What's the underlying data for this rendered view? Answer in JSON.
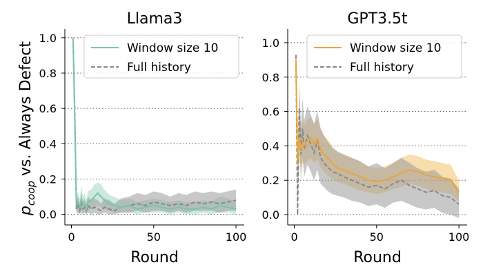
{
  "chart_data": [
    {
      "type": "line",
      "title": "Llama3",
      "xlabel": "Round",
      "ylabel_main": "p",
      "ylabel_sub": "coop",
      "ylabel_rest": " vs. Always Defect",
      "xlim": [
        -4,
        105
      ],
      "ylim": [
        -0.06,
        1.05
      ],
      "xticks": [
        "0",
        "50",
        "100"
      ],
      "xtick_values": [
        0,
        50,
        100
      ],
      "yticks": [
        "0.0",
        "0.2",
        "0.4",
        "0.6",
        "0.8",
        "1.0"
      ],
      "ytick_values": [
        0,
        0.2,
        0.4,
        0.6,
        0.8,
        1.0
      ],
      "grid": "horizontal dotted",
      "legend_position": "top-right",
      "series": [
        {
          "name": "Window size 10",
          "style": "solid",
          "color": "#7cc4a6",
          "band_color": "#8fcfb5",
          "x": [
            1,
            2,
            3,
            4,
            5,
            6,
            7,
            8,
            9,
            10,
            12,
            14,
            16,
            18,
            20,
            23,
            26,
            30,
            35,
            40,
            45,
            50,
            55,
            60,
            65,
            70,
            75,
            80,
            85,
            90,
            95,
            100
          ],
          "values": [
            1.0,
            0.55,
            0.05,
            0.07,
            0.04,
            0.09,
            0.05,
            0.06,
            0.03,
            0.07,
            0.08,
            0.1,
            0.12,
            0.1,
            0.08,
            0.06,
            0.05,
            0.04,
            0.05,
            0.03,
            0.04,
            0.05,
            0.04,
            0.03,
            0.04,
            0.03,
            0.03,
            0.04,
            0.03,
            0.05,
            0.04,
            0.03
          ],
          "lower": [
            1.0,
            0.45,
            0.02,
            0.02,
            0.01,
            0.03,
            0.01,
            0.02,
            0.0,
            0.02,
            0.03,
            0.04,
            0.05,
            0.04,
            0.03,
            0.02,
            0.01,
            0.01,
            0.01,
            0.0,
            0.01,
            0.01,
            0.01,
            0.0,
            0.01,
            0.0,
            0.0,
            0.01,
            0.0,
            0.01,
            0.01,
            0.0
          ],
          "upper": [
            1.0,
            0.65,
            0.1,
            0.13,
            0.09,
            0.16,
            0.1,
            0.12,
            0.08,
            0.13,
            0.14,
            0.17,
            0.18,
            0.17,
            0.14,
            0.11,
            0.1,
            0.08,
            0.09,
            0.07,
            0.08,
            0.09,
            0.08,
            0.07,
            0.08,
            0.07,
            0.07,
            0.08,
            0.07,
            0.1,
            0.09,
            0.07
          ]
        },
        {
          "name": "Full history",
          "style": "dashed",
          "color": "#888888",
          "band_color": "#9a9a9a",
          "x": [
            1,
            2,
            3,
            4,
            5,
            6,
            7,
            8,
            9,
            10,
            12,
            14,
            16,
            18,
            20,
            23,
            26,
            30,
            35,
            40,
            45,
            50,
            55,
            60,
            65,
            70,
            75,
            80,
            85,
            90,
            95,
            100
          ],
          "values": [
            1.0,
            0.6,
            0.03,
            0.05,
            0.02,
            0.06,
            0.03,
            0.04,
            0.02,
            0.05,
            0.03,
            0.04,
            0.03,
            0.02,
            0.04,
            0.03,
            0.02,
            0.04,
            0.05,
            0.06,
            0.05,
            0.07,
            0.06,
            0.05,
            0.06,
            0.05,
            0.07,
            0.06,
            0.07,
            0.06,
            0.07,
            0.08
          ],
          "lower": [
            1.0,
            0.5,
            0.0,
            0.01,
            0.0,
            0.01,
            0.0,
            0.01,
            0.0,
            0.01,
            0.0,
            0.01,
            0.0,
            0.0,
            0.01,
            0.0,
            0.0,
            0.01,
            0.01,
            0.02,
            0.01,
            0.02,
            0.02,
            0.01,
            0.02,
            0.01,
            0.02,
            0.02,
            0.02,
            0.01,
            0.02,
            0.02
          ],
          "upper": [
            1.0,
            0.7,
            0.08,
            0.1,
            0.06,
            0.12,
            0.07,
            0.09,
            0.06,
            0.1,
            0.08,
            0.09,
            0.08,
            0.06,
            0.09,
            0.08,
            0.06,
            0.09,
            0.1,
            0.12,
            0.11,
            0.13,
            0.12,
            0.1,
            0.12,
            0.11,
            0.13,
            0.12,
            0.13,
            0.12,
            0.13,
            0.14
          ]
        }
      ]
    },
    {
      "type": "line",
      "title": "GPT3.5t",
      "xlabel": "Round",
      "xlim": [
        -4,
        105
      ],
      "ylim": [
        -0.06,
        1.08
      ],
      "xticks": [
        "0",
        "50",
        "100"
      ],
      "xtick_values": [
        0,
        50,
        100
      ],
      "yticks": [
        "0.0",
        "0.2",
        "0.4",
        "0.6",
        "0.8",
        "1.0"
      ],
      "ytick_values": [
        0,
        0.2,
        0.4,
        0.6,
        0.8,
        1.0
      ],
      "grid": "horizontal dotted",
      "legend_position": "top-right",
      "series": [
        {
          "name": "Window size 10",
          "style": "solid",
          "color": "#e8a53a",
          "band_color": "#f0b64a",
          "x": [
            1,
            2,
            3,
            4,
            5,
            6,
            8,
            10,
            12,
            14,
            16,
            18,
            20,
            23,
            26,
            30,
            35,
            40,
            45,
            50,
            55,
            60,
            65,
            70,
            75,
            80,
            85,
            90,
            95,
            100
          ],
          "values": [
            0.9,
            0.3,
            0.45,
            0.38,
            0.42,
            0.4,
            0.43,
            0.45,
            0.41,
            0.44,
            0.38,
            0.35,
            0.33,
            0.3,
            0.27,
            0.26,
            0.24,
            0.22,
            0.2,
            0.19,
            0.2,
            0.22,
            0.24,
            0.26,
            0.25,
            0.23,
            0.22,
            0.21,
            0.2,
            0.13
          ],
          "lower": [
            0.88,
            0.05,
            0.32,
            0.27,
            0.3,
            0.29,
            0.31,
            0.33,
            0.3,
            0.32,
            0.27,
            0.25,
            0.23,
            0.21,
            0.19,
            0.18,
            0.16,
            0.14,
            0.13,
            0.12,
            0.13,
            0.15,
            0.16,
            0.18,
            0.17,
            0.15,
            0.14,
            0.13,
            0.12,
            0.08
          ],
          "upper": [
            0.92,
            0.55,
            0.58,
            0.5,
            0.55,
            0.52,
            0.55,
            0.57,
            0.52,
            0.56,
            0.5,
            0.46,
            0.44,
            0.4,
            0.36,
            0.35,
            0.33,
            0.31,
            0.28,
            0.27,
            0.28,
            0.3,
            0.33,
            0.35,
            0.34,
            0.32,
            0.31,
            0.3,
            0.29,
            0.2
          ]
        },
        {
          "name": "Full history",
          "style": "dashed",
          "color": "#888888",
          "band_color": "#9a9a9a",
          "x": [
            1,
            2,
            3,
            4,
            5,
            6,
            8,
            10,
            12,
            14,
            16,
            18,
            20,
            23,
            26,
            30,
            35,
            40,
            45,
            50,
            55,
            60,
            65,
            70,
            75,
            80,
            85,
            90,
            95,
            100
          ],
          "values": [
            0.93,
            0.0,
            0.62,
            0.35,
            0.5,
            0.38,
            0.46,
            0.41,
            0.36,
            0.43,
            0.33,
            0.3,
            0.28,
            0.25,
            0.24,
            0.22,
            0.2,
            0.18,
            0.16,
            0.17,
            0.15,
            0.18,
            0.2,
            0.17,
            0.15,
            0.13,
            0.14,
            0.11,
            0.1,
            0.06
          ],
          "lower": [
            0.9,
            0.0,
            0.45,
            0.2,
            0.33,
            0.22,
            0.29,
            0.25,
            0.2,
            0.26,
            0.18,
            0.16,
            0.14,
            0.12,
            0.11,
            0.1,
            0.08,
            0.07,
            0.05,
            0.06,
            0.04,
            0.07,
            0.08,
            0.06,
            0.04,
            0.03,
            0.04,
            0.01,
            0.0,
            -0.02
          ],
          "upper": [
            0.95,
            0.0,
            0.78,
            0.52,
            0.67,
            0.55,
            0.63,
            0.58,
            0.53,
            0.6,
            0.5,
            0.46,
            0.43,
            0.39,
            0.37,
            0.35,
            0.33,
            0.31,
            0.28,
            0.3,
            0.27,
            0.3,
            0.33,
            0.3,
            0.27,
            0.25,
            0.26,
            0.22,
            0.21,
            0.15
          ]
        }
      ]
    }
  ]
}
